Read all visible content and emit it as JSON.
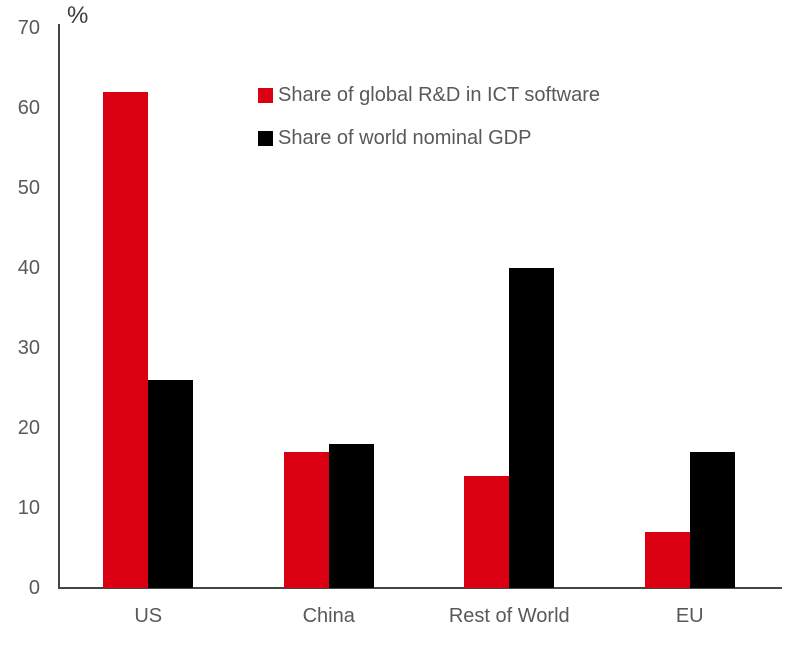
{
  "chart_data": {
    "type": "bar",
    "title": "",
    "xlabel": "",
    "ylabel": "%",
    "ylim": [
      0,
      70
    ],
    "yticks": [
      0,
      10,
      20,
      30,
      40,
      50,
      60,
      70
    ],
    "grid": false,
    "legend_position": "inside-top-center",
    "categories": [
      "US",
      "China",
      "Rest of World",
      "EU"
    ],
    "series": [
      {
        "name": "Share of global R&D in ICT software",
        "color": "#db0011",
        "values": [
          62,
          17,
          14,
          7
        ]
      },
      {
        "name": "Share of world nominal GDP",
        "color": "#000000",
        "values": [
          26,
          18,
          40,
          17
        ]
      }
    ]
  },
  "colors": {
    "axis_line": "#454545",
    "tick_text": "#595959",
    "category_text": "#595959",
    "legend_text": "#595959",
    "unit_text": "#3d3d3d",
    "background": "#ffffff"
  }
}
